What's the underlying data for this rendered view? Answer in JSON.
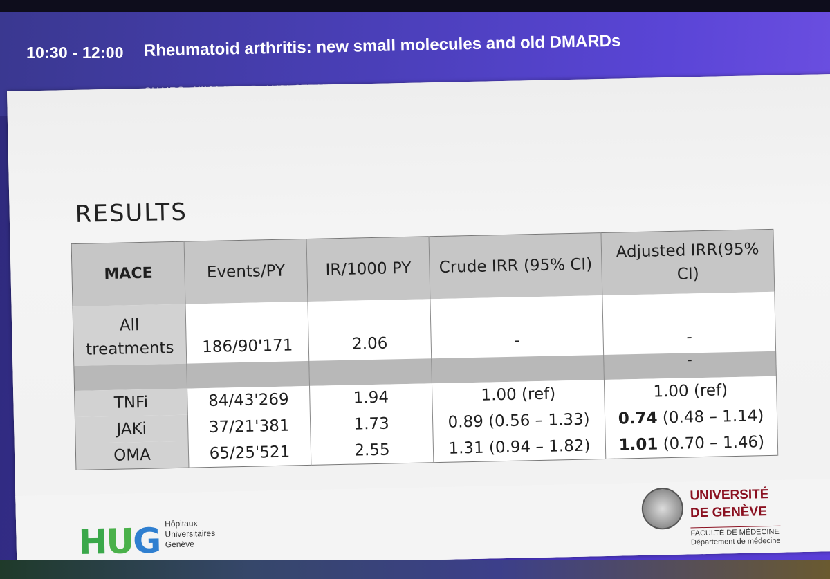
{
  "header": {
    "time": "10:30 - 12:00",
    "title": "Rheumatoid arthritis: new small molecules and old DMARDs",
    "chairs": "CHAIRS : KIM LAUPER, ANJA STRANGFELD"
  },
  "slide": {
    "heading": "RESULTS",
    "table": {
      "headers": [
        "MACE",
        "Events/PY",
        "IR/1000 PY",
        "Crude IRR (95% CI)",
        "Adjusted IRR(95% CI)"
      ],
      "all_treatments": {
        "label": "All treatments",
        "events": "186/90'171",
        "ir": "2.06",
        "crude": "-",
        "adjusted": "-"
      },
      "separator_adjusted": "-",
      "rows": [
        {
          "label": "TNFi",
          "events": "84/43'269",
          "ir": "1.94",
          "crude": "1.00 (ref)",
          "adjusted_bold": "",
          "adjusted_rest": "1.00 (ref)"
        },
        {
          "label": "JAKi",
          "events": "37/21'381",
          "ir": "1.73",
          "crude": "0.89 (0.56 – 1.33)",
          "adjusted_bold": "0.74",
          "adjusted_rest": " (0.48 – 1.14)"
        },
        {
          "label": "OMA",
          "events": "65/25'521",
          "ir": "2.55",
          "crude": "1.31 (0.94 – 1.82)",
          "adjusted_bold": "1.01",
          "adjusted_rest": " (0.70 – 1.46)"
        }
      ]
    },
    "footer": {
      "hug_logo": "HUG",
      "hug_lines": [
        "Hôpitaux",
        "Universitaires",
        "Genève"
      ],
      "unige_name_1": "UNIVERSITÉ",
      "unige_name_2": "DE GENÈVE",
      "unige_sub_1": "FACULTÉ DE MÉDECINE",
      "unige_sub_2": "Département de médecine"
    }
  }
}
